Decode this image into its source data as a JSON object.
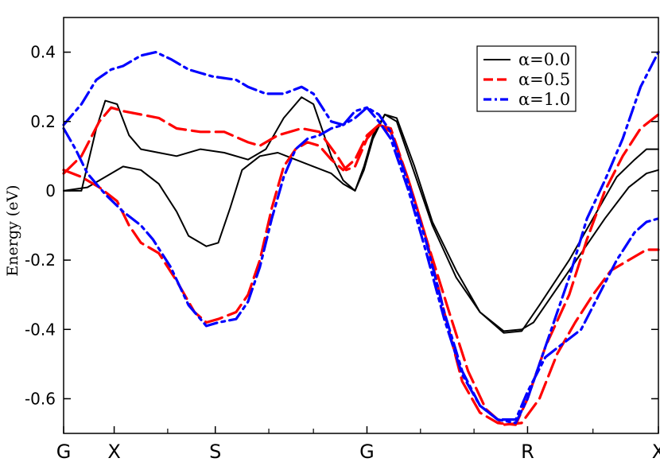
{
  "chart_data": {
    "type": "line",
    "title": "",
    "xlabel": "",
    "ylabel": "Energy (eV)",
    "ylim": [
      -0.7,
      0.5
    ],
    "xlim": [
      0,
      1
    ],
    "yticks": [
      {
        "value": 0.4,
        "label": "0.4"
      },
      {
        "value": 0.2,
        "label": "0.2"
      },
      {
        "value": 0.0,
        "label": "0"
      },
      {
        "value": -0.2,
        "label": "-0.2"
      },
      {
        "value": -0.4,
        "label": "-0.4"
      },
      {
        "value": -0.6,
        "label": "-0.6"
      }
    ],
    "kpoints": [
      {
        "x": 0.0,
        "label": "G"
      },
      {
        "x": 0.085,
        "label": "X"
      },
      {
        "x": 0.255,
        "label": "S"
      },
      {
        "x": 0.51,
        "label": "G"
      },
      {
        "x": 0.78,
        "label": "R"
      },
      {
        "x": 1.0,
        "label": "X"
      }
    ],
    "legend": {
      "placement": "top-right"
    },
    "series": [
      {
        "name": "α=0.0",
        "color": "#000000",
        "style": "solid",
        "bands": [
          [
            [
              0,
              0
            ],
            [
              0.03,
              0
            ],
            [
              0.055,
              0.18
            ],
            [
              0.07,
              0.26
            ],
            [
              0.09,
              0.25
            ],
            [
              0.11,
              0.16
            ],
            [
              0.13,
              0.12
            ],
            [
              0.16,
              0.11
            ],
            [
              0.19,
              0.1
            ],
            [
              0.23,
              0.12
            ],
            [
              0.27,
              0.11
            ],
            [
              0.31,
              0.09
            ],
            [
              0.34,
              0.12
            ],
            [
              0.37,
              0.21
            ],
            [
              0.4,
              0.27
            ],
            [
              0.42,
              0.25
            ],
            [
              0.45,
              0.1
            ],
            [
              0.47,
              0.03
            ],
            [
              0.49,
              0
            ],
            [
              0.505,
              0.07
            ],
            [
              0.52,
              0.16
            ],
            [
              0.54,
              0.22
            ],
            [
              0.56,
              0.2
            ],
            [
              0.59,
              0.05
            ],
            [
              0.62,
              -0.1
            ],
            [
              0.66,
              -0.25
            ],
            [
              0.7,
              -0.35
            ],
            [
              0.74,
              -0.41
            ],
            [
              0.77,
              -0.405
            ],
            [
              0.8,
              -0.33
            ],
            [
              0.85,
              -0.2
            ],
            [
              0.89,
              -0.08
            ],
            [
              0.93,
              0.04
            ],
            [
              0.96,
              0.09
            ],
            [
              0.98,
              0.12
            ],
            [
              1.0,
              0.12
            ]
          ],
          [
            [
              0,
              0
            ],
            [
              0.04,
              0.01
            ],
            [
              0.07,
              0.04
            ],
            [
              0.1,
              0.07
            ],
            [
              0.13,
              0.06
            ],
            [
              0.16,
              0.02
            ],
            [
              0.19,
              -0.06
            ],
            [
              0.21,
              -0.13
            ],
            [
              0.24,
              -0.16
            ],
            [
              0.26,
              -0.15
            ],
            [
              0.28,
              -0.05
            ],
            [
              0.3,
              0.06
            ],
            [
              0.33,
              0.1
            ],
            [
              0.36,
              0.11
            ],
            [
              0.39,
              0.09
            ],
            [
              0.42,
              0.07
            ],
            [
              0.45,
              0.05
            ],
            [
              0.47,
              0.02
            ],
            [
              0.49,
              0
            ],
            [
              0.505,
              0.06
            ],
            [
              0.52,
              0.15
            ],
            [
              0.54,
              0.22
            ],
            [
              0.56,
              0.21
            ],
            [
              0.59,
              0.07
            ],
            [
              0.62,
              -0.09
            ],
            [
              0.66,
              -0.23
            ],
            [
              0.7,
              -0.35
            ],
            [
              0.74,
              -0.405
            ],
            [
              0.77,
              -0.4
            ],
            [
              0.79,
              -0.38
            ],
            [
              0.83,
              -0.28
            ],
            [
              0.87,
              -0.18
            ],
            [
              0.91,
              -0.08
            ],
            [
              0.95,
              0.01
            ],
            [
              0.98,
              0.05
            ],
            [
              1.0,
              0.06
            ]
          ]
        ]
      },
      {
        "name": "α=0.5",
        "color": "#ff0000",
        "style": "dashed",
        "bands": [
          [
            [
              0,
              0.05
            ],
            [
              0.03,
              0.1
            ],
            [
              0.06,
              0.2
            ],
            [
              0.08,
              0.24
            ],
            [
              0.1,
              0.23
            ],
            [
              0.13,
              0.22
            ],
            [
              0.16,
              0.21
            ],
            [
              0.19,
              0.18
            ],
            [
              0.23,
              0.17
            ],
            [
              0.27,
              0.17
            ],
            [
              0.31,
              0.14
            ],
            [
              0.33,
              0.13
            ],
            [
              0.36,
              0.16
            ],
            [
              0.4,
              0.18
            ],
            [
              0.43,
              0.17
            ],
            [
              0.46,
              0.1
            ],
            [
              0.475,
              0.06
            ],
            [
              0.49,
              0.07
            ],
            [
              0.51,
              0.15
            ],
            [
              0.53,
              0.19
            ],
            [
              0.55,
              0.18
            ],
            [
              0.58,
              0.03
            ],
            [
              0.61,
              -0.14
            ],
            [
              0.65,
              -0.36
            ],
            [
              0.68,
              -0.52
            ],
            [
              0.71,
              -0.63
            ],
            [
              0.74,
              -0.675
            ],
            [
              0.77,
              -0.67
            ],
            [
              0.8,
              -0.6
            ],
            [
              0.83,
              -0.47
            ],
            [
              0.86,
              -0.38
            ],
            [
              0.89,
              -0.3
            ],
            [
              0.92,
              -0.23
            ],
            [
              0.95,
              -0.2
            ],
            [
              0.98,
              -0.17
            ],
            [
              1.0,
              -0.17
            ]
          ],
          [
            [
              0,
              0.06
            ],
            [
              0.03,
              0.04
            ],
            [
              0.06,
              0.01
            ],
            [
              0.09,
              -0.03
            ],
            [
              0.11,
              -0.1
            ],
            [
              0.13,
              -0.15
            ],
            [
              0.16,
              -0.18
            ],
            [
              0.19,
              -0.26
            ],
            [
              0.22,
              -0.35
            ],
            [
              0.24,
              -0.38
            ],
            [
              0.26,
              -0.37
            ],
            [
              0.29,
              -0.35
            ],
            [
              0.31,
              -0.3
            ],
            [
              0.33,
              -0.2
            ],
            [
              0.35,
              -0.05
            ],
            [
              0.37,
              0.07
            ],
            [
              0.39,
              0.12
            ],
            [
              0.41,
              0.14
            ],
            [
              0.43,
              0.13
            ],
            [
              0.45,
              0.09
            ],
            [
              0.47,
              0.06
            ],
            [
              0.49,
              0.09
            ],
            [
              0.51,
              0.16
            ],
            [
              0.53,
              0.19
            ],
            [
              0.55,
              0.17
            ],
            [
              0.58,
              0.03
            ],
            [
              0.61,
              -0.14
            ],
            [
              0.64,
              -0.35
            ],
            [
              0.67,
              -0.55
            ],
            [
              0.7,
              -0.64
            ],
            [
              0.73,
              -0.67
            ],
            [
              0.76,
              -0.675
            ],
            [
              0.78,
              -0.6
            ],
            [
              0.81,
              -0.45
            ],
            [
              0.85,
              -0.3
            ],
            [
              0.88,
              -0.14
            ],
            [
              0.91,
              0.0
            ],
            [
              0.94,
              0.1
            ],
            [
              0.97,
              0.18
            ],
            [
              1.0,
              0.22
            ]
          ]
        ]
      },
      {
        "name": "α=1.0",
        "color": "#0000ff",
        "style": "dashdot",
        "bands": [
          [
            [
              0,
              0.19
            ],
            [
              0.03,
              0.25
            ],
            [
              0.055,
              0.32
            ],
            [
              0.08,
              0.35
            ],
            [
              0.1,
              0.36
            ],
            [
              0.13,
              0.39
            ],
            [
              0.155,
              0.4
            ],
            [
              0.18,
              0.38
            ],
            [
              0.21,
              0.35
            ],
            [
              0.25,
              0.33
            ],
            [
              0.29,
              0.32
            ],
            [
              0.31,
              0.3
            ],
            [
              0.34,
              0.28
            ],
            [
              0.37,
              0.28
            ],
            [
              0.4,
              0.3
            ],
            [
              0.42,
              0.28
            ],
            [
              0.45,
              0.2
            ],
            [
              0.47,
              0.19
            ],
            [
              0.49,
              0.21
            ],
            [
              0.51,
              0.24
            ],
            [
              0.53,
              0.22
            ],
            [
              0.55,
              0.17
            ],
            [
              0.58,
              0.02
            ],
            [
              0.61,
              -0.15
            ],
            [
              0.64,
              -0.35
            ],
            [
              0.67,
              -0.52
            ],
            [
              0.7,
              -0.62
            ],
            [
              0.73,
              -0.66
            ],
            [
              0.76,
              -0.67
            ],
            [
              0.78,
              -0.6
            ],
            [
              0.81,
              -0.45
            ],
            [
              0.85,
              -0.25
            ],
            [
              0.88,
              -0.08
            ],
            [
              0.91,
              0.03
            ],
            [
              0.94,
              0.15
            ],
            [
              0.97,
              0.3
            ],
            [
              1.0,
              0.4
            ]
          ],
          [
            [
              0,
              0.18
            ],
            [
              0.02,
              0.12
            ],
            [
              0.04,
              0.05
            ],
            [
              0.07,
              -0.01
            ],
            [
              0.1,
              -0.06
            ],
            [
              0.13,
              -0.1
            ],
            [
              0.15,
              -0.14
            ],
            [
              0.18,
              -0.22
            ],
            [
              0.21,
              -0.33
            ],
            [
              0.24,
              -0.39
            ],
            [
              0.26,
              -0.38
            ],
            [
              0.29,
              -0.37
            ],
            [
              0.31,
              -0.32
            ],
            [
              0.33,
              -0.22
            ],
            [
              0.35,
              -0.08
            ],
            [
              0.37,
              0.04
            ],
            [
              0.39,
              0.12
            ],
            [
              0.41,
              0.15
            ],
            [
              0.43,
              0.16
            ],
            [
              0.45,
              0.18
            ],
            [
              0.47,
              0.19
            ],
            [
              0.49,
              0.23
            ],
            [
              0.51,
              0.24
            ],
            [
              0.53,
              0.2
            ],
            [
              0.55,
              0.15
            ],
            [
              0.58,
              0.0
            ],
            [
              0.61,
              -0.18
            ],
            [
              0.64,
              -0.37
            ],
            [
              0.67,
              -0.53
            ],
            [
              0.7,
              -0.62
            ],
            [
              0.73,
              -0.66
            ],
            [
              0.76,
              -0.66
            ],
            [
              0.78,
              -0.58
            ],
            [
              0.81,
              -0.48
            ],
            [
              0.84,
              -0.44
            ],
            [
              0.87,
              -0.4
            ],
            [
              0.9,
              -0.3
            ],
            [
              0.93,
              -0.2
            ],
            [
              0.96,
              -0.12
            ],
            [
              0.98,
              -0.09
            ],
            [
              1.0,
              -0.08
            ]
          ]
        ]
      }
    ]
  }
}
